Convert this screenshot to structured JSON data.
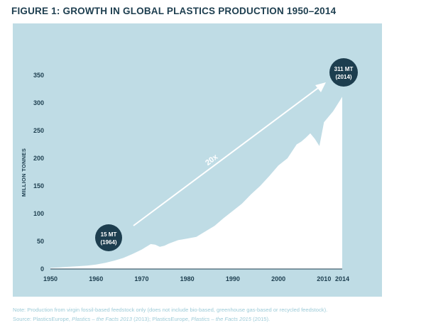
{
  "figure": {
    "title": "FIGURE 1: GROWTH IN GLOBAL PLASTICS PRODUCTION 1950–2014"
  },
  "chart_data": {
    "type": "area",
    "title": "FIGURE 1: GROWTH IN GLOBAL PLASTICS PRODUCTION 1950–2014",
    "xlabel": "",
    "ylabel": "MILLION TONNES",
    "xlim": [
      1950,
      2014
    ],
    "ylim": [
      0,
      350
    ],
    "x_ticks": [
      "1950",
      "1960",
      "1970",
      "1980",
      "1990",
      "2000",
      "2010",
      "2014"
    ],
    "y_ticks": [
      "0",
      "50",
      "100",
      "150",
      "200",
      "250",
      "300",
      "350"
    ],
    "grid": false,
    "legend": "none",
    "fill_color": "#ffffff",
    "background_color": "#bfdce5",
    "text_color": "#1d3e4f",
    "badge_color": "#1d3e4f",
    "series": [
      {
        "x": [
          1950,
          1952,
          1954,
          1956,
          1958,
          1960,
          1962,
          1964,
          1966,
          1968,
          1970,
          1971,
          1972,
          1973,
          1974,
          1975,
          1976,
          1978,
          1980,
          1982,
          1984,
          1986,
          1988,
          1990,
          1992,
          1994,
          1996,
          1998,
          2000,
          2002,
          2004,
          2005,
          2006,
          2007,
          2008,
          2009,
          2010,
          2011,
          2012,
          2013,
          2014
        ],
        "y": [
          2,
          3,
          4,
          5,
          6,
          8,
          11,
          15,
          20,
          27,
          35,
          40,
          45,
          44,
          40,
          42,
          46,
          52,
          55,
          58,
          68,
          78,
          92,
          105,
          118,
          135,
          150,
          168,
          187,
          200,
          225,
          230,
          237,
          245,
          235,
          222,
          265,
          275,
          285,
          298,
          311
        ]
      }
    ],
    "annotations": {
      "start_line1": "15 MT",
      "start_line2": "(1964)",
      "end_line1": "311 MT",
      "end_line2": "(2014)",
      "growth": "20x"
    }
  },
  "notes": {
    "line1": "Note: Production from virgin fossil-based feedstock only (does not include bio-based, greenhouse gas-based or recycled feedstock).",
    "line2_prefix": "Source: PlasticsEurope, ",
    "line2_italic1": "Plastics – the Facts 2013",
    "line2_mid": " (2013); PlasticsEurope, ",
    "line2_italic2": "Plastics – the Facts 2015",
    "line2_suffix": " (2015)."
  }
}
